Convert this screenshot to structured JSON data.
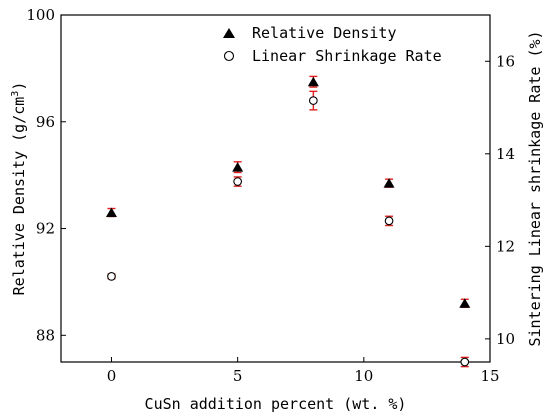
{
  "chart_data": {
    "type": "scatter",
    "xlabel": "CuSn addition percent (wt. %)",
    "ylabel_left": "Relative Density (g/cm3)",
    "ylabel_left_parts": [
      "Relative Density (g/cm",
      "3",
      ")"
    ],
    "ylabel_right": "Sintering Linear shrinkage Rate (%)",
    "xlim": [
      -2,
      15
    ],
    "ylim_left": [
      87,
      100
    ],
    "ylim_right": [
      9.5,
      17
    ],
    "x_ticks": [
      0,
      5,
      10,
      15
    ],
    "y_ticks_left": [
      88,
      92,
      96,
      100
    ],
    "y_ticks_right": [
      10,
      12,
      14,
      16
    ],
    "legend_position": "top-center",
    "error_bar_color": "#e02020",
    "series": [
      {
        "name": "Relative Density",
        "axis": "left",
        "marker": "filled-triangle",
        "x": [
          0,
          5,
          8,
          11,
          14
        ],
        "y": [
          92.6,
          94.3,
          97.5,
          93.7,
          89.2
        ],
        "yerr": [
          0.15,
          0.2,
          0.2,
          0.15,
          0.15
        ]
      },
      {
        "name": "Linear Shrinkage Rate",
        "axis": "right",
        "marker": "open-circle",
        "x": [
          0,
          5,
          8,
          11,
          14
        ],
        "y": [
          11.35,
          13.4,
          15.15,
          12.55,
          9.5
        ],
        "yerr": [
          0.05,
          0.1,
          0.2,
          0.1,
          0.1
        ]
      }
    ]
  }
}
